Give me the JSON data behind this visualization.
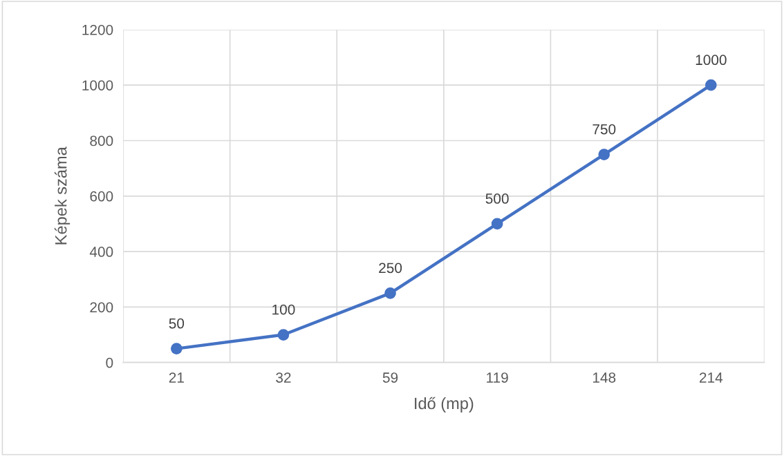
{
  "chart_data": {
    "type": "line",
    "xlabel": "Idő (mp)",
    "ylabel": "Képek száma",
    "categories": [
      "21",
      "32",
      "59",
      "119",
      "148",
      "214"
    ],
    "values": [
      50,
      100,
      250,
      500,
      750,
      1000
    ],
    "color": "#4472c4",
    "ylim": [
      0,
      1200
    ],
    "yticks": [
      0,
      200,
      400,
      600,
      800,
      1000,
      1200
    ],
    "grid": true,
    "marker": "circle",
    "line_style": "solid",
    "data_labels": true
  }
}
